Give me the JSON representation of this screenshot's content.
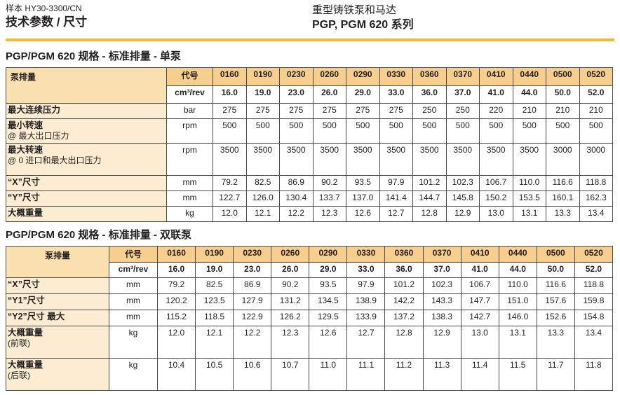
{
  "page": {
    "doc_ref": "样本 HY30-3300/CN",
    "title": "技术参数 / 尺寸",
    "product_line": "重型铸铁泵和马达",
    "series": "PGP, PGM 620 系列"
  },
  "colors": {
    "gold_rule": "#F9B72B",
    "header_orange": "#F7CE8E",
    "corner_tan": "#FADFAF",
    "label_cream": "#FCEDD2",
    "border": "#4A4A4A"
  },
  "tables": [
    {
      "title": "PGP/PGM 620 规格 - 标准排量 - 单泵",
      "corner_label": "泵排量",
      "code_header": "代号",
      "unit_header": "cm³/rev",
      "codes": [
        "0160",
        "0190",
        "0230",
        "0260",
        "0290",
        "0330",
        "0360",
        "0370",
        "0410",
        "0440",
        "0500",
        "0520"
      ],
      "displacements": [
        "16.0",
        "19.0",
        "23.0",
        "26.0",
        "29.0",
        "33.0",
        "36.0",
        "37.0",
        "41.0",
        "44.0",
        "50.0",
        "52.0"
      ],
      "rows": [
        {
          "label": "最大连续压力",
          "sublabel": "",
          "unit": "bar",
          "values": [
            "275",
            "275",
            "275",
            "275",
            "275",
            "275",
            "250",
            "250",
            "220",
            "210",
            "210",
            "210"
          ]
        },
        {
          "label": "最小转速",
          "sublabel": "@ 最大出口压力",
          "unit": "rpm",
          "values": [
            "500",
            "500",
            "500",
            "500",
            "500",
            "500",
            "500",
            "500",
            "500",
            "500",
            "500",
            "500"
          ]
        },
        {
          "label": "最大转速",
          "sublabel": "@ 0 进口和最大出口压力",
          "unit": "rpm",
          "values": [
            "3500",
            "3500",
            "3500",
            "3500",
            "3500",
            "3500",
            "3500",
            "3500",
            "3500",
            "3500",
            "3000",
            "3000"
          ]
        },
        {
          "label": "“X”尺寸",
          "sublabel": "",
          "unit": "mm",
          "values": [
            "79.2",
            "82.5",
            "86.9",
            "90.2",
            "93.5",
            "97.9",
            "101.2",
            "102.3",
            "106.7",
            "110.0",
            "116.6",
            "118.8"
          ]
        },
        {
          "label": "“Y”尺寸",
          "sublabel": "",
          "unit": "mm",
          "values": [
            "122.7",
            "126.0",
            "130.4",
            "133.7",
            "137.0",
            "141.4",
            "144.7",
            "145.8",
            "150.2",
            "153.5",
            "160.1",
            "162.3"
          ]
        },
        {
          "label": "大概重量",
          "sublabel": "",
          "unit": "kg",
          "values": [
            "12.0",
            "12.1",
            "12.2",
            "12.3",
            "12.6",
            "12.7",
            "12.8",
            "12.9",
            "13.0",
            "13.1",
            "13.3",
            "13.4"
          ]
        }
      ]
    },
    {
      "title": "PGP/PGM 620 规格 - 标准排量 - 双联泵",
      "corner_label": "泵排量",
      "code_header": "代号",
      "unit_header": "cm³/rev",
      "codes": [
        "0160",
        "0190",
        "0230",
        "0260",
        "0290",
        "0330",
        "0360",
        "0370",
        "0410",
        "0440",
        "0500",
        "0520"
      ],
      "displacements": [
        "16.0",
        "19.0",
        "23.0",
        "26.0",
        "29.0",
        "33.0",
        "36.0",
        "37.0",
        "41.0",
        "44.0",
        "50.0",
        "52.0"
      ],
      "rows": [
        {
          "label": "“X”尺寸",
          "sublabel": "",
          "unit": "mm",
          "values": [
            "79.2",
            "82.5",
            "86.9",
            "90.2",
            "93.5",
            "97.9",
            "101.2",
            "102.3",
            "106.7",
            "110.0",
            "116.6",
            "118.8"
          ]
        },
        {
          "label": "“Y1”尺寸",
          "sublabel": "",
          "unit": "mm",
          "values": [
            "120.2",
            "123.5",
            "127.9",
            "131.2",
            "134.5",
            "138.9",
            "142.2",
            "143.3",
            "147.7",
            "151.0",
            "157.6",
            "159.8"
          ]
        },
        {
          "label": "“Y2”尺寸 最大",
          "sublabel": "",
          "unit": "mm",
          "values": [
            "115.2",
            "118.5",
            "122.9",
            "126.2",
            "129.5",
            "133.9",
            "137.2",
            "138.3",
            "142.7",
            "146.0",
            "152.6",
            "154.8"
          ]
        },
        {
          "label": "大概重量",
          "sublabel": "(前联)",
          "unit": "kg",
          "values": [
            "12.0",
            "12.1",
            "12.2",
            "12.3",
            "12.6",
            "12.7",
            "12.8",
            "12.9",
            "13.0",
            "13.1",
            "13.3",
            "13.4"
          ]
        },
        {
          "label": "大概重量",
          "sublabel": "(后联)",
          "unit": "kg",
          "values": [
            "10.4",
            "10.5",
            "10.6",
            "10.7",
            "11.0",
            "11.1",
            "11.2",
            "11.3",
            "11.4",
            "11.5",
            "11.7",
            "11.8"
          ]
        }
      ]
    }
  ]
}
